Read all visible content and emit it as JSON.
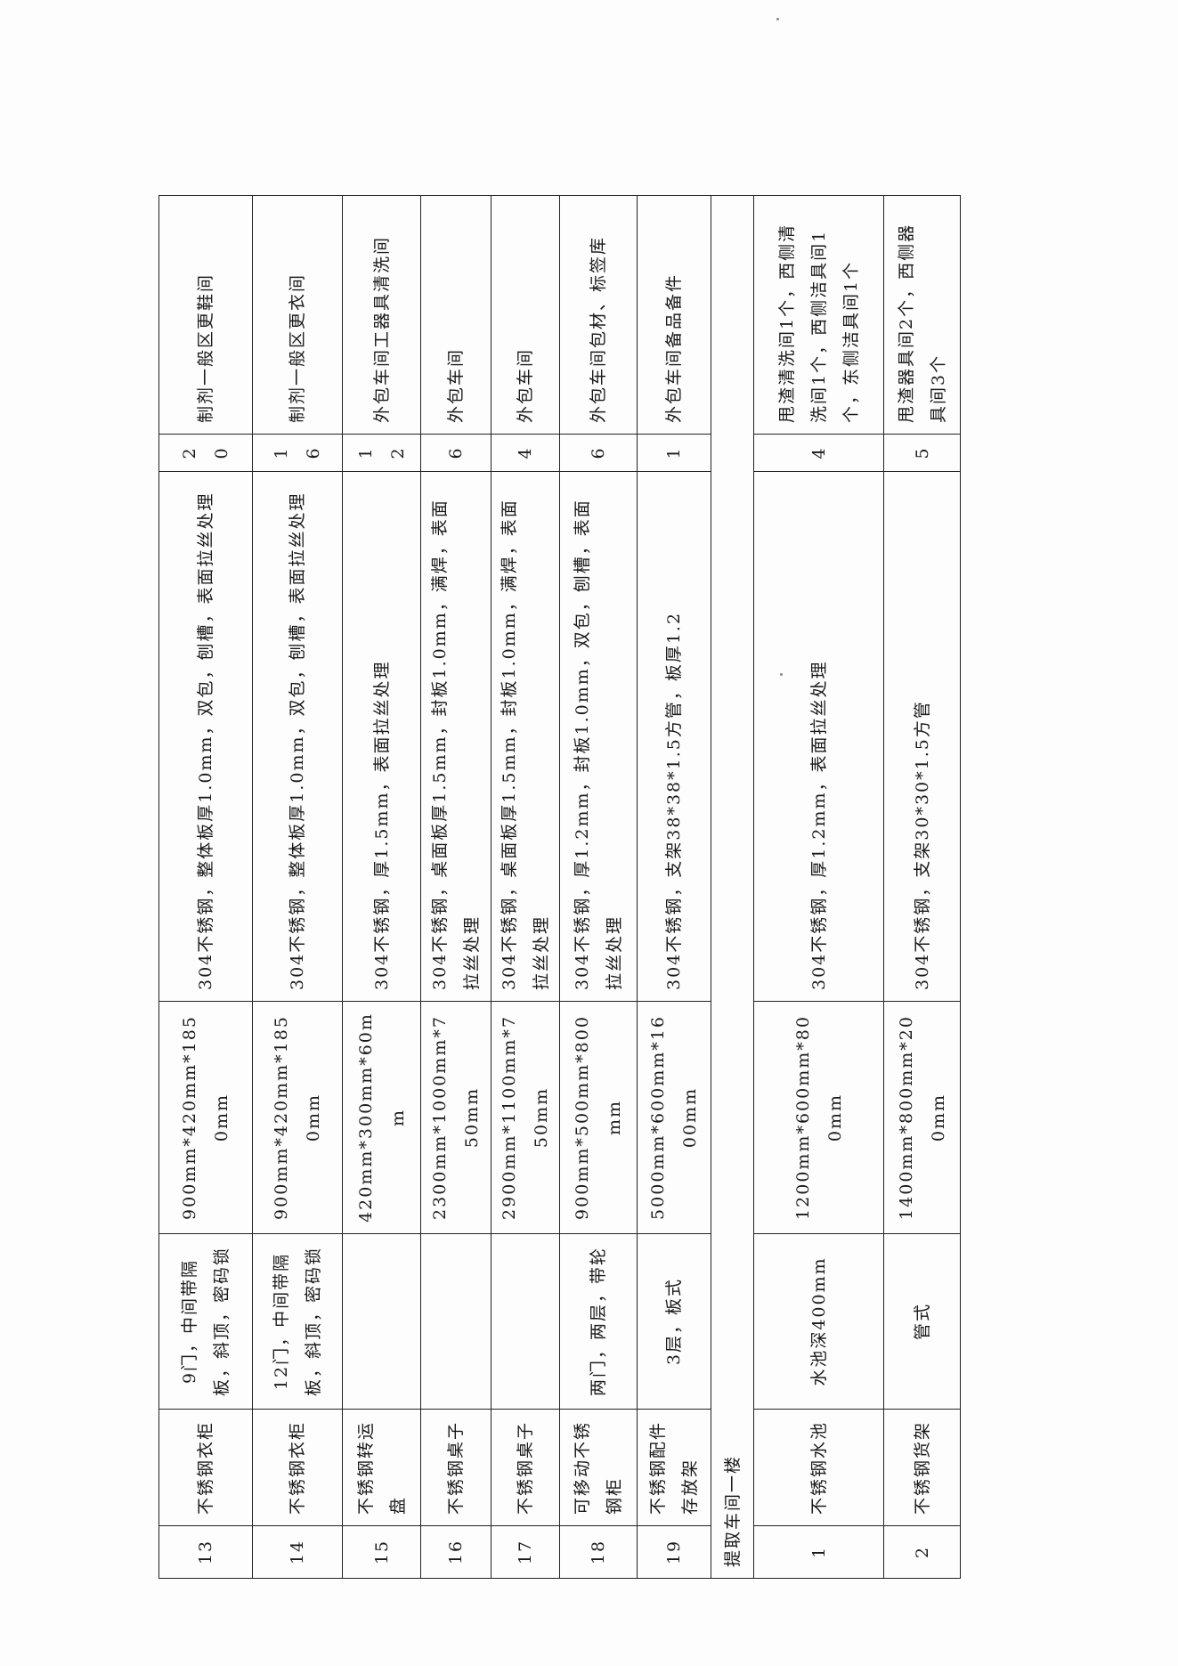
{
  "rows": [
    {
      "no": "13",
      "name": "不锈钢衣柜",
      "spec": "9门，中间带隔板，斜顶，密码锁",
      "size": "900mm*420mm*1850mm",
      "material": "304不锈钢，整体板厚1.0mm，双包，刨槽，表面拉丝处理",
      "qty": "20",
      "location": "制剂一般区更鞋间"
    },
    {
      "no": "14",
      "name": "不锈钢衣柜",
      "spec": "12门，中间带隔板，斜顶，密码锁",
      "size": "900mm*420mm*1850mm",
      "material": "304不锈钢，整体板厚1.0mm，双包，刨槽，表面拉丝处理",
      "qty": "16",
      "location": "制剂一般区更衣间"
    },
    {
      "no": "15",
      "name": "不锈钢转运盘",
      "spec": "",
      "size": "420mm*300mm*60mm",
      "material": "304不锈钢，厚1.5mm，表面拉丝处理",
      "qty": "12",
      "location": "外包车间工器具清洗间"
    },
    {
      "no": "16",
      "name": "不锈钢桌子",
      "spec": "",
      "size": "2300mm*1000mm*750mm",
      "material": "304不锈钢，桌面板厚1.5mm，封板1.0mm，满焊，表面拉丝处理",
      "qty": "6",
      "location": "外包车间"
    },
    {
      "no": "17",
      "name": "不锈钢桌子",
      "spec": "",
      "size": "2900mm*1100mm*750mm",
      "material": "304不锈钢，桌面板厚1.5mm，封板1.0mm，满焊，表面拉丝处理",
      "qty": "4",
      "location": "外包车间"
    },
    {
      "no": "18",
      "name": "可移动不锈钢柜",
      "spec": "两门，两层，带轮",
      "size": "900mm*500mm*800mm",
      "material": "304不锈钢，厚1.2mm，封板1.0mm，双包，刨槽，表面拉丝处理",
      "qty": "6",
      "location": "外包车间包材、标签库"
    },
    {
      "no": "19",
      "name": "不锈钢配件存放架",
      "spec": "3层，板式",
      "size": "5000mm*600mm*1600mm",
      "material": "304不锈钢，支架38*38*1.5方管，板厚1.2",
      "qty": "1",
      "location": "外包车间备品备件"
    }
  ],
  "section_title": "提取车间一楼",
  "section_rows": [
    {
      "no": "1",
      "name": "不锈钢水池",
      "spec": "水池深400mm",
      "size": "1200mm*600mm*800mm",
      "material": "304不锈钢，厚1.2mm，表面拉丝处理",
      "qty": "4",
      "location": "甩渣清洗间1个，西侧清洗间1个，西侧洁具间1个，东侧洁具间1个"
    },
    {
      "no": "2",
      "name": "不锈钢货架",
      "spec": "管式",
      "size": "1400mm*800mm*200mm",
      "material": "304不锈钢，支架30*30*1.5方管",
      "qty": "5",
      "location": "甩渣器具间2个，西侧器具间3个"
    }
  ]
}
